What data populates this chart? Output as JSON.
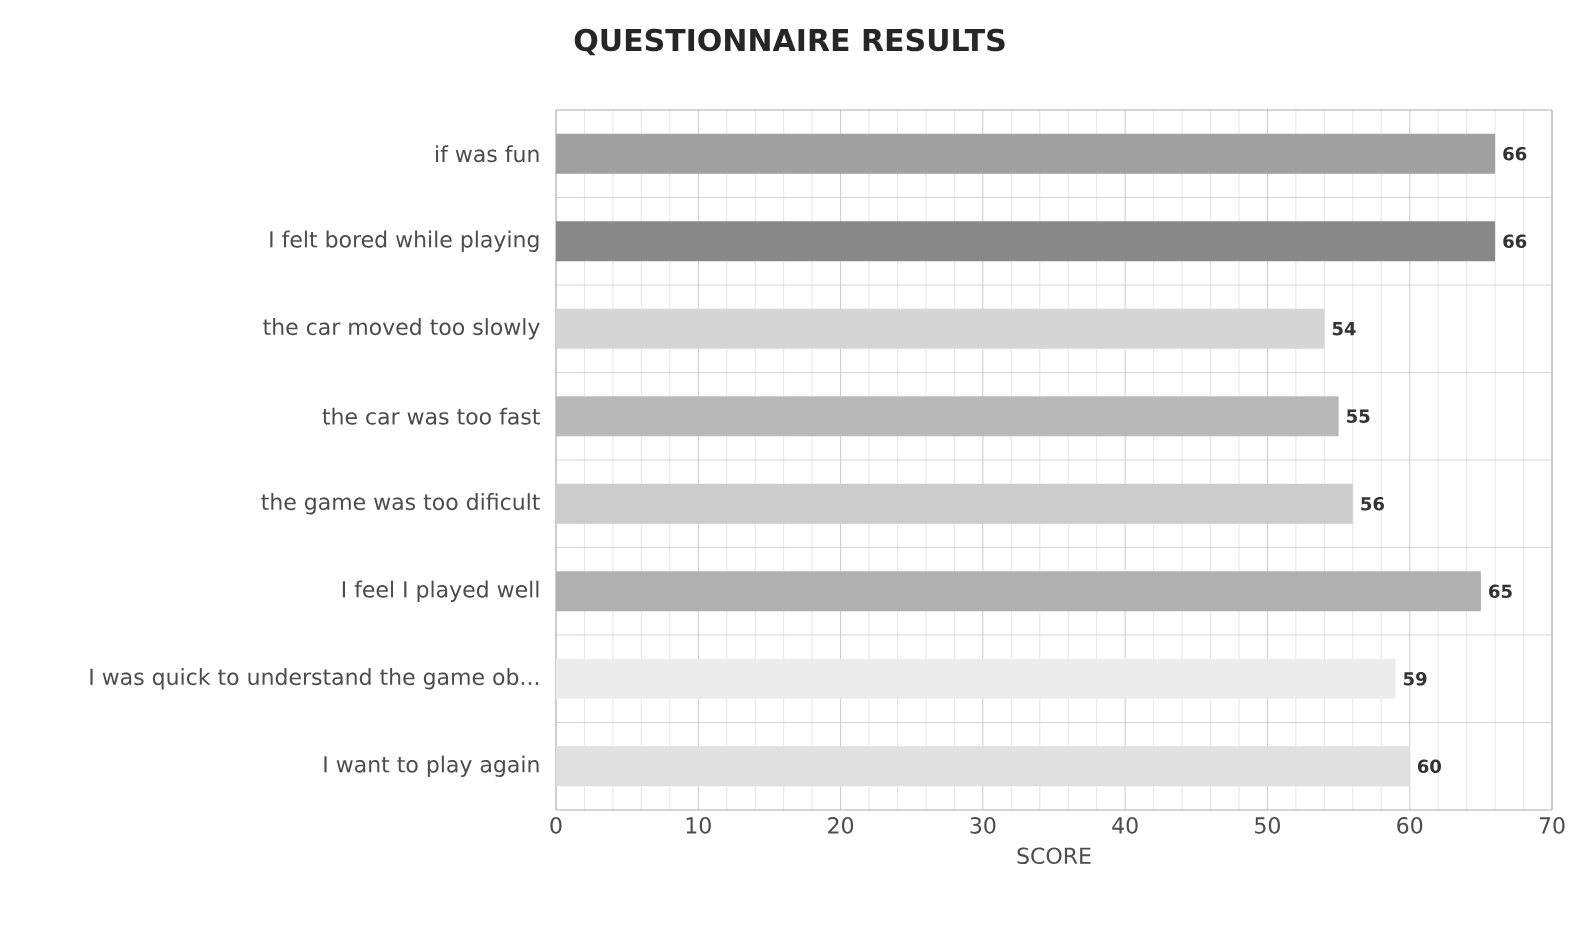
{
  "chart_data": {
    "type": "bar",
    "orientation": "horizontal",
    "title": "QUESTIONNAIRE RESULTS",
    "xlabel": "SCORE",
    "categories": [
      "if was fun",
      "I felt bored while playing",
      "the car moved too slowly",
      "the car was too fast",
      "the game was too dificult",
      "I feel I played well",
      "I was quick to understand the game ob...",
      "I want to play again"
    ],
    "values": [
      66,
      66,
      54,
      55,
      56,
      65,
      59,
      60
    ],
    "colors": [
      "#a0a0a0",
      "#888888",
      "#d6d6d6",
      "#b8b8b8",
      "#cccccc",
      "#b0b0b0",
      "#ececec",
      "#e0e0e0"
    ],
    "xlim": [
      0,
      70
    ],
    "xticks": [
      0,
      10,
      20,
      30,
      40,
      50,
      60,
      70
    ],
    "data_labels": true,
    "grid": "x"
  }
}
